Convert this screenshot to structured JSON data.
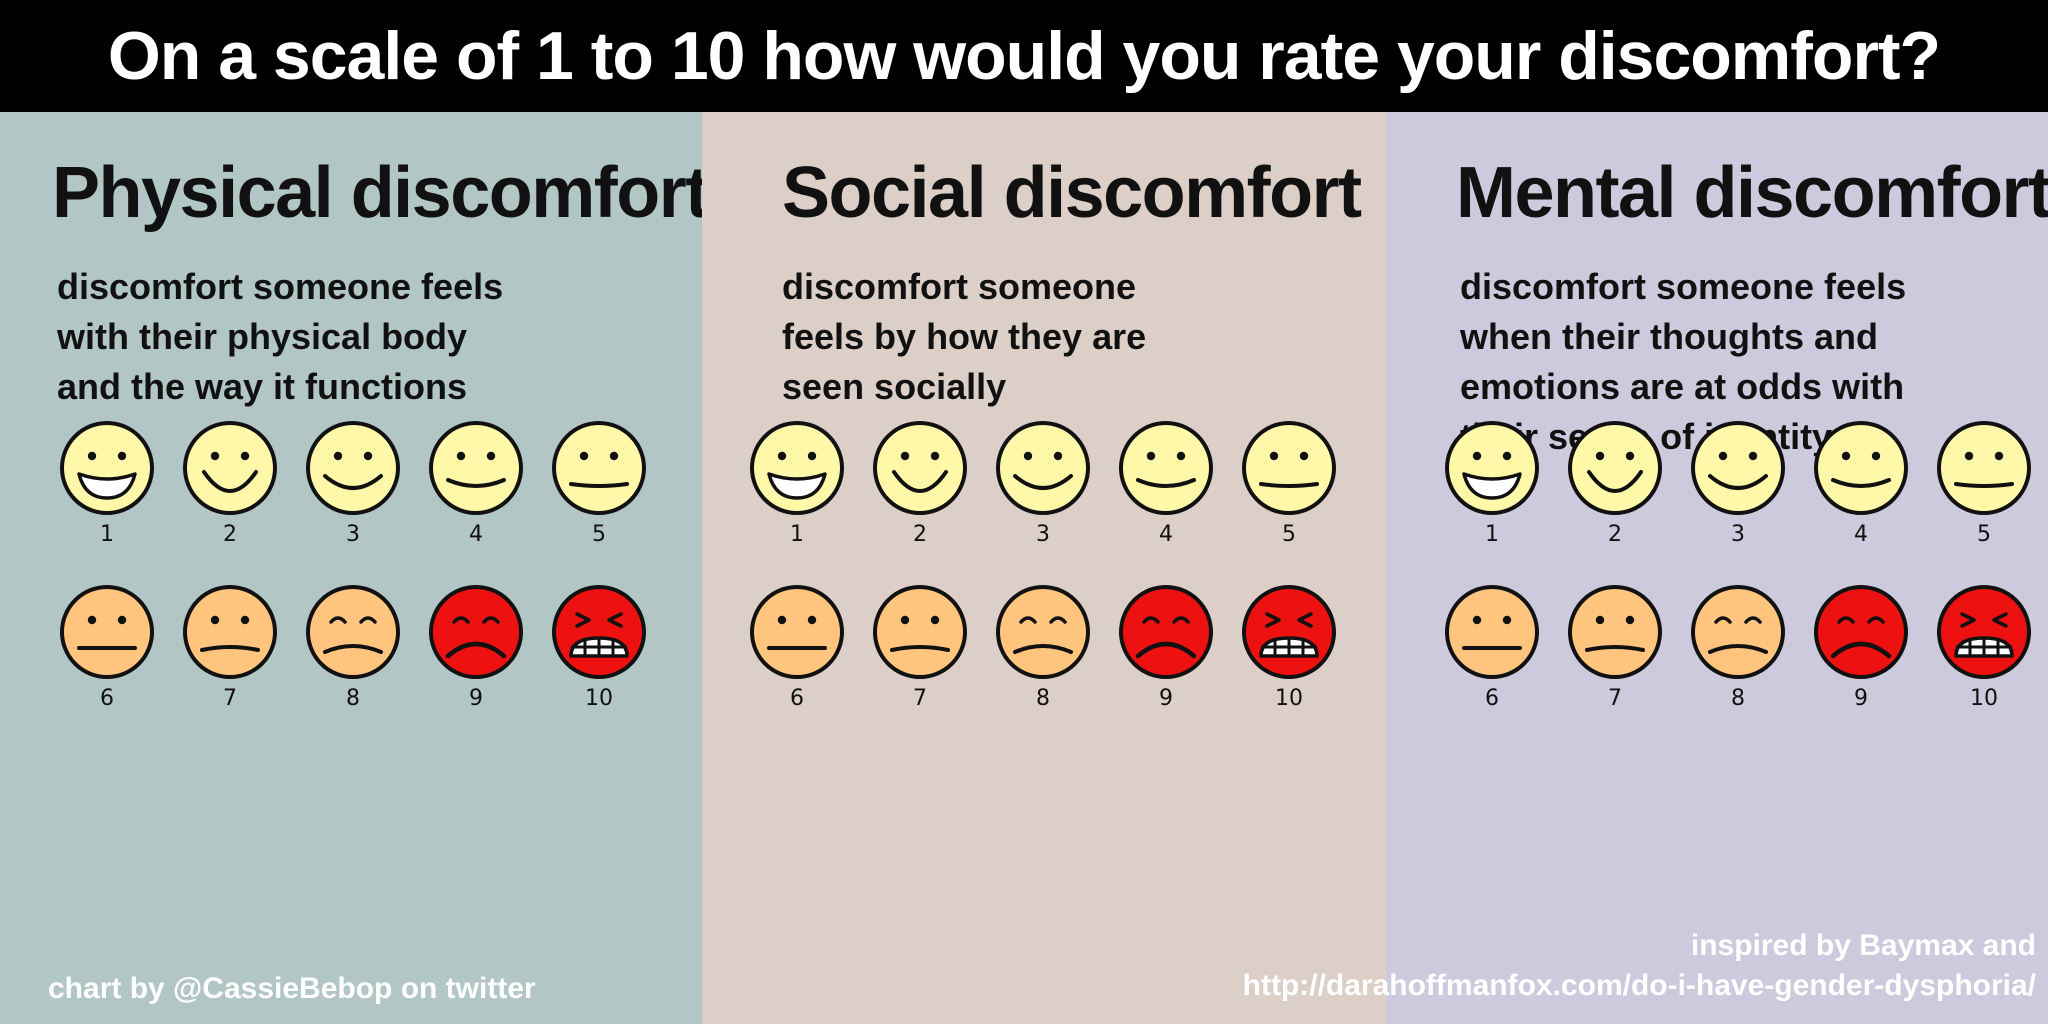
{
  "header": {
    "title": "On a scale of 1 to 10 how would you rate your discomfort?"
  },
  "panels": [
    {
      "title": "Physical discomfort",
      "description": [
        "discomfort someone feels",
        "with their physical body",
        "and the way it functions"
      ],
      "background": "#b2c6c6"
    },
    {
      "title": "Social discomfort",
      "description": [
        "discomfort someone",
        "feels by how they are",
        "seen socially"
      ],
      "background": "#dccfc8"
    },
    {
      "title": "Mental discomfort",
      "description": [
        "discomfort someone feels",
        "when their thoughts and",
        "emotions are at odds with",
        "their sense of identity"
      ],
      "background": "#cccadc"
    }
  ],
  "scale": {
    "levels": [
      "1",
      "2",
      "3",
      "4",
      "5",
      "6",
      "7",
      "8",
      "9",
      "10"
    ],
    "colors": {
      "happy": "#fff8a8",
      "uneasy": "#ffc47e",
      "distressed": "#ee1111",
      "outline": "#111111"
    }
  },
  "footer": {
    "credit_left": "chart by @CassieBebop on twitter",
    "credit_right_line1": "inspired by Baymax and",
    "credit_right_line2": "http://darahoffmanfox.com/do-i-have-gender-dysphoria/"
  }
}
